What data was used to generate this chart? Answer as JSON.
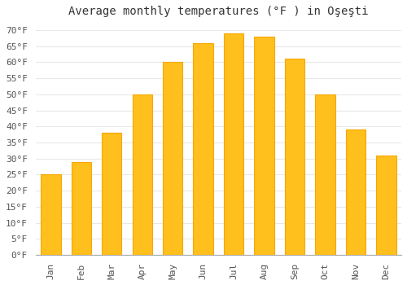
{
  "title": "Average monthly temperatures (°F ) in Oşeşti",
  "months": [
    "Jan",
    "Feb",
    "Mar",
    "Apr",
    "May",
    "Jun",
    "Jul",
    "Aug",
    "Sep",
    "Oct",
    "Nov",
    "Dec"
  ],
  "values": [
    25,
    29,
    38,
    50,
    60,
    66,
    69,
    68,
    61,
    50,
    39,
    31
  ],
  "bar_color": "#FFC01E",
  "bar_edge_color": "#F5A800",
  "background_color": "#FFFFFF",
  "plot_bg_color": "#FFFFFF",
  "grid_color": "#E8E8E8",
  "title_color": "#333333",
  "tick_color": "#555555",
  "ylim": [
    0,
    72
  ],
  "yticks": [
    0,
    5,
    10,
    15,
    20,
    25,
    30,
    35,
    40,
    45,
    50,
    55,
    60,
    65,
    70
  ],
  "title_fontsize": 10,
  "tick_fontsize": 8,
  "figsize": [
    5.0,
    3.5
  ],
  "dpi": 100
}
